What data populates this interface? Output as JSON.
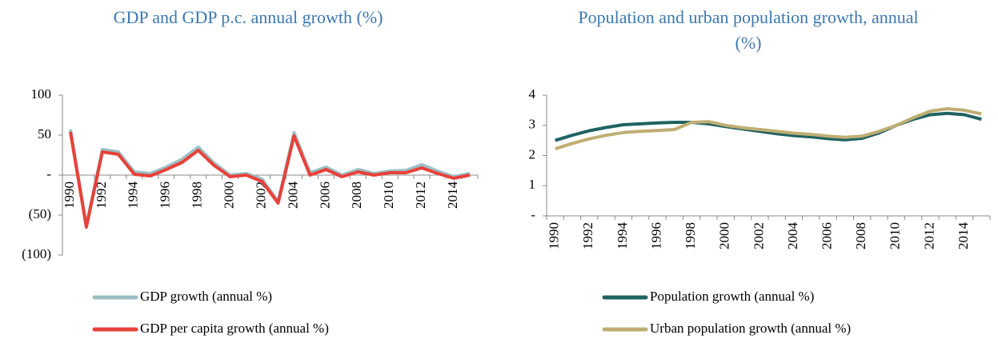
{
  "chart_data": [
    {
      "type": "line",
      "title": "GDP and GDP p.c. annual growth (%)",
      "categories": [
        "1990",
        null,
        "1992",
        null,
        "1994",
        null,
        "1996",
        null,
        "1998",
        null,
        "2000",
        null,
        "2002",
        null,
        "2004",
        null,
        "2006",
        null,
        "2008",
        null,
        "2010",
        null,
        "2012",
        null,
        "2014",
        null
      ],
      "series": [
        {
          "name": "GDP growth (annual %)",
          "color": "#9dbfc4",
          "values": [
            57,
            -63,
            32,
            29,
            4,
            2,
            10,
            20,
            35,
            15,
            0,
            2,
            -5,
            -33,
            53,
            3,
            10,
            0,
            7,
            2,
            5,
            6,
            13,
            5,
            -2,
            2
          ]
        },
        {
          "name": "GDP per capita growth (annual %)",
          "color": "#e8413a",
          "values": [
            54,
            -65,
            29,
            26,
            1,
            -1,
            7,
            16,
            31,
            12,
            -2,
            0,
            -8,
            -35,
            49,
            0,
            7,
            -2,
            4,
            0,
            3,
            3,
            9,
            2,
            -4,
            0
          ]
        }
      ],
      "ylim": [
        -100,
        100
      ],
      "yticks": [
        {
          "value": -100,
          "label": "(100)"
        },
        {
          "value": -50,
          "label": "(50)"
        },
        {
          "value": 0,
          "label": "-"
        },
        50,
        100
      ],
      "legend": "bottom"
    },
    {
      "type": "line",
      "title": "Population and urban population growth, annual (%)",
      "categories": [
        "1990",
        null,
        "1992",
        null,
        "1994",
        null,
        "1996",
        null,
        "1998",
        null,
        "2000",
        null,
        "2002",
        null,
        "2004",
        null,
        "2006",
        null,
        "2008",
        null,
        "2010",
        null,
        "2012",
        null,
        "2014",
        null
      ],
      "series": [
        {
          "name": "Population growth (annual %)",
          "color": "#1f6262",
          "values": [
            2.5,
            2.67,
            2.82,
            2.93,
            3.02,
            3.05,
            3.08,
            3.1,
            3.1,
            3.05,
            2.96,
            2.88,
            2.8,
            2.72,
            2.66,
            2.62,
            2.56,
            2.52,
            2.57,
            2.75,
            3.0,
            3.2,
            3.35,
            3.4,
            3.35,
            3.2
          ]
        },
        {
          "name": "Urban population growth (annual %)",
          "color": "#bfae73",
          "values": [
            2.22,
            2.4,
            2.55,
            2.67,
            2.76,
            2.8,
            2.83,
            2.86,
            3.1,
            3.12,
            3.0,
            2.92,
            2.86,
            2.8,
            2.74,
            2.7,
            2.64,
            2.6,
            2.64,
            2.8,
            3.0,
            3.25,
            3.47,
            3.55,
            3.5,
            3.38
          ]
        }
      ],
      "ylim": [
        0,
        4
      ],
      "yticks": [
        {
          "value": 0,
          "label": "-"
        },
        1,
        2,
        3,
        4
      ],
      "legend": "bottom"
    }
  ]
}
